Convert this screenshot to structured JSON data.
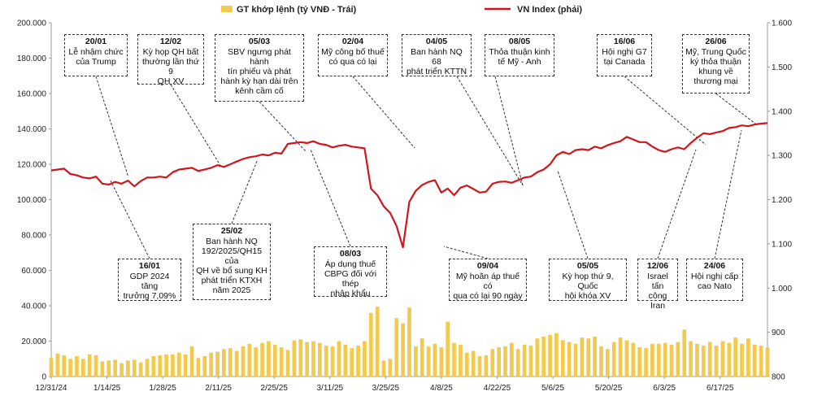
{
  "chart_data": {
    "type": "bar+line",
    "legend": {
      "placement": "top-center",
      "bars_label": "GT khớp lệnh (tỷ VNĐ - Trái)",
      "line_label": "VN Index (phải)"
    },
    "colors": {
      "bars": "#F2CA50",
      "line": "#D0161B"
    },
    "x_tick_labels": [
      "12/31/24",
      "1/14/25",
      "1/28/25",
      "2/11/25",
      "2/25/25",
      "3/11/25",
      "3/25/25",
      "4/8/25",
      "4/22/25",
      "5/6/25",
      "5/20/25",
      "6/3/25",
      "6/17/25"
    ],
    "y_left": {
      "ylim": [
        0,
        200000
      ],
      "ticks": [
        "0",
        "20.000",
        "40.000",
        "60.000",
        "80.000",
        "100.000",
        "120.000",
        "140.000",
        "160.000",
        "180.000",
        "200.000"
      ]
    },
    "y_right": {
      "ylim": [
        800,
        1600
      ],
      "ticks": [
        "800",
        "900",
        "1.000",
        "1.100",
        "1.200",
        "1.300",
        "1.400",
        "1.500",
        "1.600"
      ]
    },
    "grid": false,
    "series": [
      {
        "name": "GT khớp lệnh (tỷ VNĐ - Trái)",
        "axis": "left",
        "kind": "bar",
        "values": [
          10500,
          13000,
          12000,
          10000,
          11500,
          10000,
          12500,
          12000,
          8500,
          9000,
          9500,
          7500,
          9000,
          9500,
          8000,
          10000,
          11500,
          12000,
          12500,
          12500,
          13500,
          12500,
          17000,
          10500,
          11500,
          13500,
          14000,
          15500,
          16000,
          14500,
          17000,
          18500,
          16500,
          19000,
          20000,
          18000,
          16500,
          15000,
          20500,
          21000,
          19500,
          20000,
          19000,
          17500,
          17000,
          20000,
          18000,
          16000,
          17500,
          20000,
          36000,
          39500,
          9000,
          10000,
          33000,
          30000,
          39000,
          17000,
          21500,
          17000,
          18500,
          16500,
          31000,
          19000,
          18000,
          13500,
          14500,
          11500,
          12000,
          15500,
          16500,
          17000,
          19000,
          15500,
          18000,
          17500,
          21500,
          22500,
          23500,
          24500,
          20500,
          19500,
          18500,
          22000,
          21500,
          22500,
          17000,
          15500,
          19500,
          22000,
          20500,
          19000,
          16500,
          16000,
          18500,
          18500,
          19000,
          18000,
          19500,
          26500,
          20000,
          18500,
          17500,
          19500,
          17500,
          20000,
          19000,
          22000,
          18500,
          21500,
          18000,
          17500,
          16500
        ]
      },
      {
        "name": "VN Index (phải)",
        "axis": "right",
        "kind": "line",
        "values": [
          1266,
          1268,
          1270,
          1258,
          1255,
          1250,
          1248,
          1252,
          1236,
          1234,
          1240,
          1236,
          1243,
          1230,
          1242,
          1250,
          1250,
          1252,
          1250,
          1262,
          1268,
          1270,
          1272,
          1265,
          1268,
          1272,
          1278,
          1274,
          1280,
          1286,
          1292,
          1296,
          1298,
          1302,
          1300,
          1306,
          1304,
          1326,
          1328,
          1330,
          1328,
          1332,
          1326,
          1324,
          1318,
          1322,
          1324,
          1320,
          1318,
          1316,
          1225,
          1210,
          1185,
          1170,
          1140,
          1092,
          1195,
          1220,
          1233,
          1240,
          1244,
          1216,
          1225,
          1210,
          1227,
          1232,
          1224,
          1216,
          1218,
          1236,
          1240,
          1241,
          1238,
          1244,
          1250,
          1252,
          1262,
          1268,
          1280,
          1300,
          1308,
          1303,
          1312,
          1314,
          1312,
          1320,
          1316,
          1323,
          1328,
          1332,
          1342,
          1336,
          1330,
          1330,
          1320,
          1312,
          1308,
          1314,
          1318,
          1314,
          1328,
          1340,
          1350,
          1348,
          1352,
          1355,
          1362,
          1364,
          1368,
          1366,
          1370,
          1372,
          1373
        ]
      }
    ],
    "annotations": [
      {
        "date": "20/01",
        "text": "Lễ nhậm chức\ncủa Trump"
      },
      {
        "date": "12/02",
        "text": "Kỳ họp QH bất\nthường lần thứ 9\nQH XV"
      },
      {
        "date": "05/03",
        "text": "SBV ngưng phát hành\ntín phiếu và phát\nhành kỳ hạn dài trên\nkênh cầm cố"
      },
      {
        "date": "02/04",
        "text": "Mỹ công bố thuế\ncó qua có lại"
      },
      {
        "date": "04/05",
        "text": "Ban hành NQ 68\nphát triển KTTN"
      },
      {
        "date": "08/05",
        "text": "Thỏa thuận kinh\ntế Mỹ - Anh"
      },
      {
        "date": "16/06",
        "text": "Hội nghị G7\ntại Canada"
      },
      {
        "date": "26/06",
        "text": "Mỹ, Trung Quốc\nký thỏa thuận\nkhung về\nthương mại"
      },
      {
        "date": "16/01",
        "text": "GDP 2024 tăng\ntrưởng 7,09%"
      },
      {
        "date": "25/02",
        "text": "Ban hành NQ\n192/2025/QH15 của\nQH về bổ sung KH\nphát triển KTXH\nnăm 2025"
      },
      {
        "date": "08/03",
        "text": "Áp dụng thuế\nCBPG đối với thép\nnhập khẩu"
      },
      {
        "date": "09/04",
        "text": "Mỹ hoãn áp thuế có\nqua có lại 90 ngày"
      },
      {
        "date": "05/05",
        "text": "Kỳ họp thứ 9, Quốc\nhội khóa XV"
      },
      {
        "date": "12/06",
        "text": "Israel tấn\ncông Iran"
      },
      {
        "date": "24/06",
        "text": "Hội nghị cấp\ncao Nato"
      }
    ]
  }
}
